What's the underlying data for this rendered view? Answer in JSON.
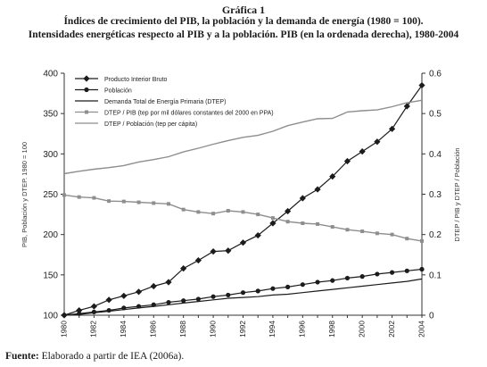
{
  "figure_label": "Gráfica 1",
  "title_line1": "Índices de crecimiento del PIB, la población y la demanda de energía (1980 = 100).",
  "title_line2": "Intensidades energéticas respecto al PIB y a la población. PIB (en la ordenada derecha), 1980-2004",
  "source_label": "Fuente:",
  "source_text": "Elaborado a partir de IEA (2006a).",
  "colors": {
    "dark": "#1c1c1c",
    "gray": "#8e8e8e"
  },
  "chart_data": {
    "type": "line",
    "ylabel_left": "PIB, Población y DTEP. 1980 = 100",
    "ylabel_right": "DTEP / PIB y DTEP / Población",
    "ylim_left": [
      100,
      400
    ],
    "yticks_left": [
      100,
      150,
      200,
      250,
      300,
      350,
      400
    ],
    "ylim_right": [
      0,
      0.6
    ],
    "yticks_right": [
      "0",
      "0.1",
      "0.2",
      "0.3",
      "0.4",
      "0.5",
      "0.6"
    ],
    "xlim": [
      1980,
      2004
    ],
    "xticks": [
      1980,
      1982,
      1984,
      1986,
      1988,
      1990,
      1992,
      1994,
      1996,
      1998,
      2000,
      2002,
      2004
    ],
    "legend_position": "top-left",
    "series": [
      {
        "name": "Producto Interior Bruto",
        "axis": "left",
        "color": "#1c1c1c",
        "marker": "diamond",
        "x": [
          1980,
          1981,
          1982,
          1983,
          1984,
          1985,
          1986,
          1987,
          1988,
          1989,
          1990,
          1991,
          1992,
          1993,
          1994,
          1995,
          1996,
          1997,
          1998,
          1999,
          2000,
          2001,
          2002,
          2003,
          2004
        ],
        "y": [
          100,
          106,
          111,
          119,
          124,
          129,
          136,
          141,
          158,
          168,
          179,
          180,
          190,
          199,
          214,
          229,
          245,
          256,
          272,
          291,
          303,
          315,
          331,
          359,
          385
        ]
      },
      {
        "name": "Población",
        "axis": "left",
        "color": "#1c1c1c",
        "marker": "circle",
        "x": [
          1980,
          1981,
          1982,
          1983,
          1984,
          1985,
          1986,
          1987,
          1988,
          1989,
          1990,
          1991,
          1992,
          1993,
          1994,
          1995,
          1996,
          1997,
          1998,
          1999,
          2000,
          2001,
          2002,
          2003,
          2004
        ],
        "y": [
          100,
          102,
          104,
          106,
          109,
          111,
          113,
          116,
          118,
          120,
          123,
          125,
          128,
          130,
          133,
          135,
          138,
          141,
          143,
          146,
          148,
          151,
          153,
          155,
          157
        ]
      },
      {
        "name": "Demanda Total de Energía Primaria (DTEP)",
        "axis": "left",
        "color": "#1c1c1c",
        "marker": "none",
        "x": [
          1980,
          1981,
          1982,
          1983,
          1984,
          1985,
          1986,
          1987,
          1988,
          1989,
          1990,
          1991,
          1992,
          1993,
          1994,
          1995,
          1996,
          1997,
          1998,
          1999,
          2000,
          2001,
          2002,
          2003,
          2004
        ],
        "y": [
          100,
          101,
          103,
          105,
          107,
          109,
          111,
          113,
          115,
          117,
          119,
          121,
          122,
          123,
          125,
          126,
          128,
          130,
          132,
          134,
          136,
          138,
          140,
          142,
          145
        ]
      },
      {
        "name": "DTEP / PIB (tep por mil dólares constantes del 2000 en PPA)",
        "axis": "right",
        "color": "#8e8e8e",
        "marker": "square",
        "x": [
          1980,
          1981,
          1982,
          1983,
          1984,
          1985,
          1986,
          1987,
          1988,
          1989,
          1990,
          1991,
          1992,
          1993,
          1994,
          1995,
          1996,
          1997,
          1998,
          1999,
          2000,
          2001,
          2002,
          2003,
          2004
        ],
        "y": [
          0.298,
          0.293,
          0.291,
          0.283,
          0.282,
          0.28,
          0.278,
          0.276,
          0.262,
          0.256,
          0.252,
          0.259,
          0.256,
          0.25,
          0.241,
          0.232,
          0.228,
          0.226,
          0.219,
          0.212,
          0.208,
          0.203,
          0.2,
          0.19,
          0.184
        ]
      },
      {
        "name": "DTEP / Población (tep per cápita)",
        "axis": "right",
        "color": "#8e8e8e",
        "marker": "none",
        "x": [
          1980,
          1981,
          1982,
          1983,
          1984,
          1985,
          1986,
          1987,
          1988,
          1989,
          1990,
          1991,
          1992,
          1993,
          1994,
          1995,
          1996,
          1997,
          1998,
          1999,
          2000,
          2001,
          2002,
          2003,
          2004
        ],
        "y": [
          0.351,
          0.357,
          0.362,
          0.366,
          0.371,
          0.38,
          0.386,
          0.393,
          0.405,
          0.414,
          0.424,
          0.433,
          0.441,
          0.446,
          0.456,
          0.47,
          0.479,
          0.487,
          0.488,
          0.504,
          0.507,
          0.509,
          0.517,
          0.527,
          0.533
        ]
      }
    ]
  }
}
